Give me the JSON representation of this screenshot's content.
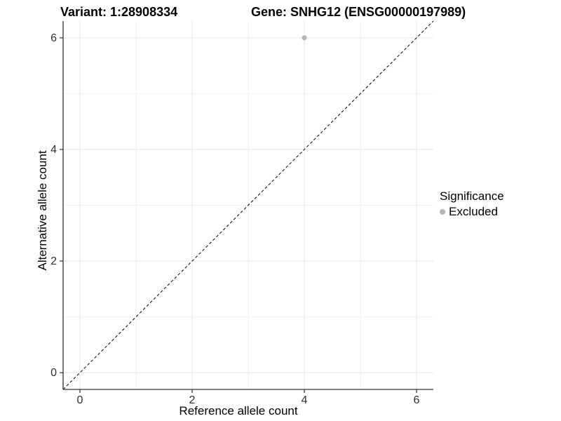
{
  "titles": {
    "variant": "Variant: 1:28908334",
    "gene": "Gene: SNHG12 (ENSG00000197989)"
  },
  "chart_data": {
    "type": "scatter",
    "xlabel": "Reference allele count",
    "ylabel": "Alternative allele count",
    "xlim": [
      -0.3,
      6.3
    ],
    "ylim": [
      -0.3,
      6.3
    ],
    "xticks": [
      0,
      2,
      4,
      6
    ],
    "yticks": [
      0,
      2,
      4,
      6
    ],
    "minor_xticks": [
      1,
      3,
      5
    ],
    "minor_yticks": [
      1,
      3,
      5
    ],
    "grid": "on",
    "series": [
      {
        "name": "Excluded",
        "color": "#b4b4b4",
        "points": [
          {
            "x": 4,
            "y": 6
          }
        ]
      }
    ],
    "identity_line": {
      "type": "dashed",
      "x1": -0.3,
      "y1": -0.3,
      "x2": 6.3,
      "y2": 6.3
    },
    "legend": {
      "title": "Significance",
      "position": "right",
      "items": [
        {
          "label": "Excluded",
          "color": "#b4b4b4"
        }
      ]
    }
  },
  "colors": {
    "background": "#ffffff",
    "grid_major": "#e6e6e6",
    "grid_minor": "#f2f2f2",
    "axis_line": "#333333",
    "tick_mark": "#333333",
    "tick_label": "#303030",
    "identity_line": "#000000",
    "point": "#b4b4b4"
  }
}
